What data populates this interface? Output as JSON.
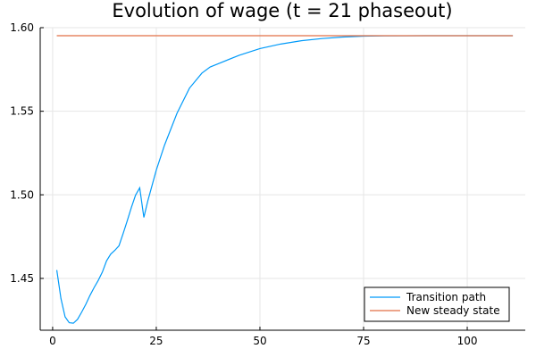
{
  "chart_data": {
    "type": "line",
    "title": "Evolution of wage (t = 21 phaseout)",
    "xlabel": "",
    "ylabel": "",
    "xlim": [
      -3,
      114
    ],
    "ylim": [
      1.419,
      1.6
    ],
    "xticks": [
      0,
      25,
      50,
      75,
      100
    ],
    "xtick_labels": [
      "0",
      "25",
      "50",
      "75",
      "100"
    ],
    "yticks": [
      1.45,
      1.5,
      1.55,
      1.6
    ],
    "ytick_labels": [
      "1.45",
      "1.50",
      "1.55",
      "1.60"
    ],
    "grid": true,
    "legend_position": "bottom-right",
    "series": [
      {
        "name": "Transition path",
        "color": "#009af9",
        "x": [
          1,
          2,
          3,
          4,
          5,
          6,
          7,
          8,
          9,
          10,
          11,
          12,
          13,
          14,
          15,
          16,
          17,
          18,
          19,
          20,
          21,
          22,
          23,
          25,
          27,
          30,
          33,
          36,
          38,
          40,
          45,
          50,
          55,
          60,
          65,
          70,
          75,
          80,
          90,
          100,
          111
        ],
        "y": [
          1.455,
          1.438,
          1.427,
          1.4235,
          1.4232,
          1.4255,
          1.4298,
          1.4345,
          1.4398,
          1.4445,
          1.4488,
          1.4538,
          1.4605,
          1.4645,
          1.4668,
          1.4695,
          1.4768,
          1.4845,
          1.4925,
          1.4998,
          1.5042,
          1.4865,
          1.4968,
          1.5148,
          1.5298,
          1.5488,
          1.5638,
          1.5728,
          1.5765,
          1.5785,
          1.5835,
          1.5875,
          1.5902,
          1.5922,
          1.5935,
          1.5944,
          1.5949,
          1.5951,
          1.5952,
          1.5952,
          1.5952
        ]
      },
      {
        "name": "New steady state",
        "color": "#e26f46",
        "x": [
          1,
          111
        ],
        "y": [
          1.5952,
          1.5952
        ]
      }
    ]
  }
}
